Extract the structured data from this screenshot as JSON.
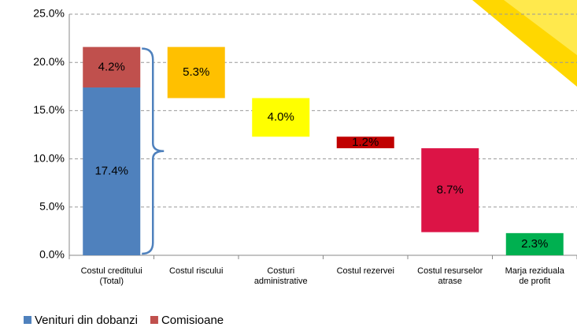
{
  "chart_data": {
    "type": "waterfall",
    "categories": [
      [
        "Costul creditului",
        "(Total)"
      ],
      [
        "Costul riscului"
      ],
      [
        "Costuri",
        "administrative"
      ],
      [
        "Costul rezervei"
      ],
      [
        "Costul resurselor",
        "atrase"
      ],
      [
        "Marja reziduala",
        "de profit"
      ]
    ],
    "series": [
      {
        "name": "Venituri din dobanzi",
        "color": "#4f81bd",
        "values": [
          17.4,
          null,
          null,
          null,
          null,
          null
        ],
        "value_labels": [
          "17.4%",
          null,
          null,
          null,
          null,
          null
        ]
      },
      {
        "name": "Comisioane",
        "color": "#c0504d",
        "values": [
          4.2,
          null,
          null,
          null,
          null,
          null
        ],
        "value_labels": [
          "4.2%",
          null,
          null,
          null,
          null,
          null
        ]
      }
    ],
    "steps": {
      "values": [
        null,
        5.3,
        4.0,
        1.2,
        8.7,
        2.3
      ],
      "value_labels": [
        null,
        "5.3%",
        "4.0%",
        "1.2%",
        "8.7%",
        "2.3%"
      ],
      "colors": [
        null,
        "#ffc000",
        "#ffff00",
        "#c00000",
        "#dc1446",
        "#00b050"
      ]
    },
    "ylim": [
      0,
      25
    ],
    "yticks": [
      {
        "value": 0,
        "label": "0.0%"
      },
      {
        "value": 5,
        "label": "5.0%"
      },
      {
        "value": 10,
        "label": "10.0%"
      },
      {
        "value": 15,
        "label": "15.0%"
      },
      {
        "value": 20,
        "label": "20.0%"
      },
      {
        "value": 25,
        "label": "25.0%"
      }
    ],
    "grid": true,
    "legend": "bottom"
  }
}
